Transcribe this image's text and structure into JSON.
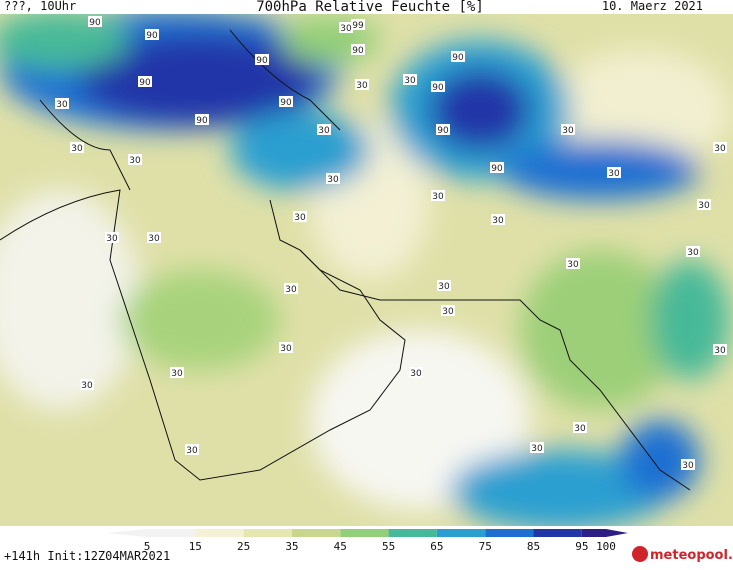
{
  "header": {
    "left": "???, 10Uhr",
    "title": "700hPa Relative Feuchte [%]",
    "date": "10. Maerz 2021"
  },
  "contour_labels": [
    "90",
    "90",
    "90",
    "90",
    "90",
    "90",
    "99",
    "30",
    "90",
    "90",
    "30",
    "90",
    "30",
    "30",
    "30",
    "90",
    "30",
    "30",
    "30",
    "30",
    "90",
    "30",
    "30",
    "30",
    "30",
    "30",
    "30",
    "30",
    "30",
    "30",
    "30",
    "30",
    "30",
    "30",
    "30",
    "30",
    "30",
    "30",
    "30",
    "30",
    "30",
    "30",
    "30"
  ],
  "colorbar": {
    "ticks": [
      5,
      15,
      25,
      35,
      45,
      55,
      65,
      75,
      85,
      95,
      100
    ],
    "colors": [
      "#f2f2f2",
      "#f4f1d6",
      "#e6e6b2",
      "#c9d78e",
      "#93cf78",
      "#46b998",
      "#2a9fd0",
      "#1f6fd2",
      "#2236a8",
      "#2d1d86"
    ]
  },
  "footer": {
    "run": "+141h Init:12Z04MAR2021",
    "logo": "meteopool.org"
  }
}
